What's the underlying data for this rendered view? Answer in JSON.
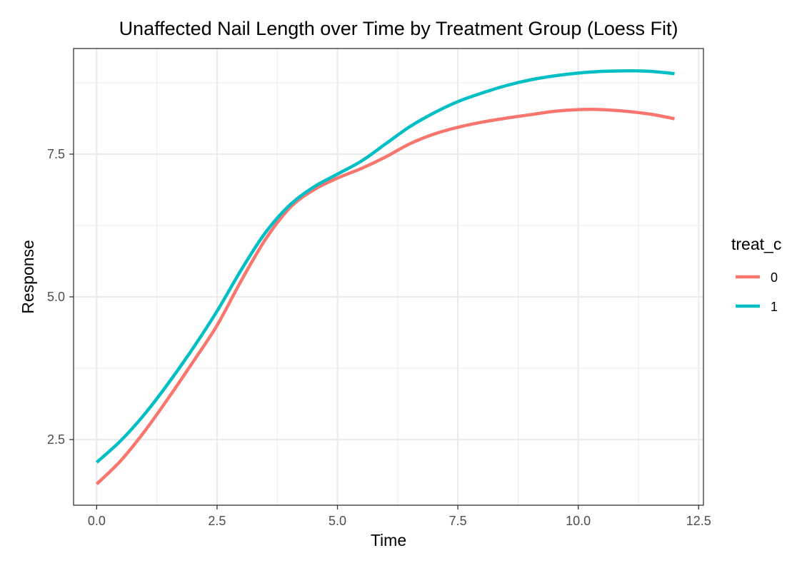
{
  "chart_data": {
    "type": "line",
    "title": "Unaffected Nail Length over Time by Treatment Group (Loess Fit)",
    "xlabel": "Time",
    "ylabel": "Response",
    "xlim": [
      -0.48,
      12.6
    ],
    "ylim": [
      1.35,
      9.35
    ],
    "x_ticks": [
      0.0,
      2.5,
      5.0,
      7.5,
      10.0,
      12.5
    ],
    "x_tick_labels": [
      "0.0",
      "2.5",
      "5.0",
      "7.5",
      "10.0",
      "12.5"
    ],
    "x_minor_ticks": [
      1.25,
      3.75,
      6.25,
      8.75,
      11.25
    ],
    "y_ticks": [
      2.5,
      5.0,
      7.5
    ],
    "y_tick_labels": [
      "2.5",
      "5.0",
      "7.5"
    ],
    "y_minor_ticks": [
      3.75,
      6.25,
      8.75
    ],
    "grid": true,
    "legend": {
      "title": "treat_c",
      "position": "right"
    },
    "series": [
      {
        "name": "0",
        "color": "#F8766D",
        "x": [
          0,
          0.5,
          1,
          1.5,
          2,
          2.5,
          3,
          3.5,
          4,
          4.5,
          5,
          5.5,
          6,
          6.5,
          7,
          7.5,
          8,
          8.5,
          9,
          9.5,
          10,
          10.5,
          11,
          11.5,
          12
        ],
        "y": [
          1.72,
          2.13,
          2.65,
          3.24,
          3.86,
          4.5,
          5.28,
          6.0,
          6.55,
          6.87,
          7.08,
          7.25,
          7.45,
          7.68,
          7.85,
          7.97,
          8.06,
          8.13,
          8.19,
          8.25,
          8.28,
          8.28,
          8.25,
          8.2,
          8.12
        ]
      },
      {
        "name": "1",
        "color": "#00BFC4",
        "x": [
          0,
          0.5,
          1,
          1.5,
          2,
          2.5,
          3,
          3.5,
          4,
          4.5,
          5,
          5.5,
          6,
          6.5,
          7,
          7.5,
          8,
          8.5,
          9,
          9.5,
          10,
          10.5,
          11,
          11.5,
          12
        ],
        "y": [
          2.1,
          2.48,
          2.95,
          3.5,
          4.1,
          4.75,
          5.47,
          6.12,
          6.6,
          6.92,
          7.15,
          7.38,
          7.68,
          7.98,
          8.22,
          8.42,
          8.57,
          8.7,
          8.8,
          8.87,
          8.92,
          8.95,
          8.96,
          8.95,
          8.91
        ]
      }
    ]
  }
}
